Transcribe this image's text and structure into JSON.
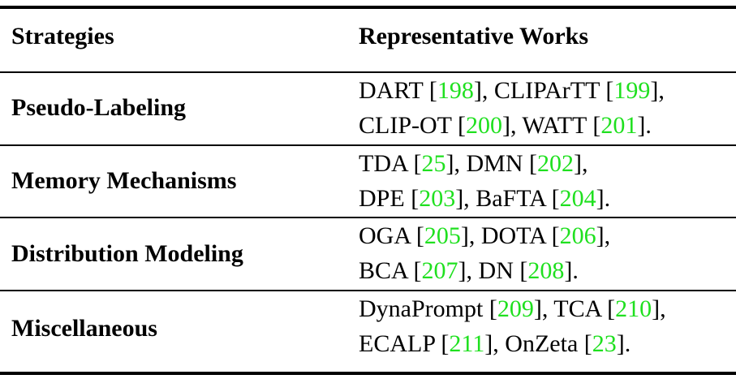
{
  "table": {
    "headers": [
      "Strategies",
      "Representative Works"
    ],
    "rows": [
      {
        "strategy": "Pseudo-Labeling",
        "works": [
          {
            "name": "DART",
            "ref": "198"
          },
          {
            "name": "CLIPArTT",
            "ref": "199"
          },
          {
            "name": "CLIP-OT",
            "ref": "200"
          },
          {
            "name": "WATT",
            "ref": "201"
          }
        ]
      },
      {
        "strategy": "Memory Mechanisms",
        "works": [
          {
            "name": "TDA",
            "ref": "25"
          },
          {
            "name": "DMN",
            "ref": "202"
          },
          {
            "name": "DPE",
            "ref": "203"
          },
          {
            "name": "BaFTA",
            "ref": "204"
          }
        ]
      },
      {
        "strategy": "Distribution Modeling",
        "works": [
          {
            "name": "OGA",
            "ref": "205"
          },
          {
            "name": "DOTA",
            "ref": "206"
          },
          {
            "name": "BCA",
            "ref": "207"
          },
          {
            "name": "DN",
            "ref": "208"
          }
        ]
      },
      {
        "strategy": "Miscellaneous",
        "works": [
          {
            "name": "DynaPrompt",
            "ref": "209"
          },
          {
            "name": "TCA",
            "ref": "210"
          },
          {
            "name": "ECALP",
            "ref": "211"
          },
          {
            "name": "OnZeta",
            "ref": "23"
          }
        ]
      }
    ]
  },
  "colors": {
    "citation": "#1fe01f",
    "text": "#000000"
  }
}
